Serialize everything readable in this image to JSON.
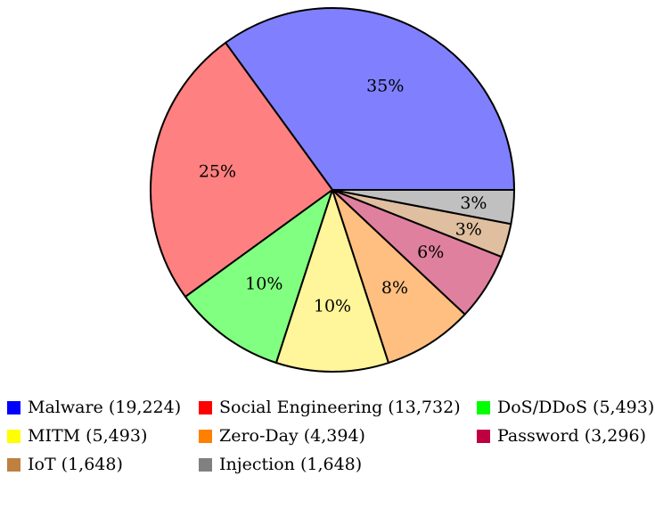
{
  "chart_data": {
    "type": "pie",
    "title": "",
    "slices": [
      {
        "name": "Malware",
        "count": "19,224",
        "value": 19224,
        "percent_label": "35%",
        "color": "#8080ff",
        "legend_color": "#0000ff"
      },
      {
        "name": "Social Engineering",
        "count": "13,732",
        "value": 13732,
        "percent_label": "25%",
        "color": "#ff8080",
        "legend_color": "#ff0000"
      },
      {
        "name": "DoS/DDoS",
        "count": "5,493",
        "value": 5493,
        "percent_label": "10%",
        "color": "#80ff80",
        "legend_color": "#00ff00"
      },
      {
        "name": "MITM",
        "count": "5,493",
        "value": 5493,
        "percent_label": "10%",
        "color": "#fff59a",
        "legend_color": "#ffff00"
      },
      {
        "name": "Zero-Day",
        "count": "4,394",
        "value": 4394,
        "percent_label": "8%",
        "color": "#ffbf80",
        "legend_color": "#ff8000"
      },
      {
        "name": "Password",
        "count": "3,296",
        "value": 3296,
        "percent_label": "6%",
        "color": "#df809f",
        "legend_color": "#bf0040"
      },
      {
        "name": "IoT",
        "count": "1,648",
        "value": 1648,
        "percent_label": "3%",
        "color": "#dfbf9f",
        "legend_color": "#bf8040"
      },
      {
        "name": "Injection",
        "count": "1,648",
        "value": 1648,
        "percent_label": "3%",
        "color": "#c0c0c0",
        "legend_color": "#808080"
      }
    ],
    "legend_position": "bottom"
  }
}
